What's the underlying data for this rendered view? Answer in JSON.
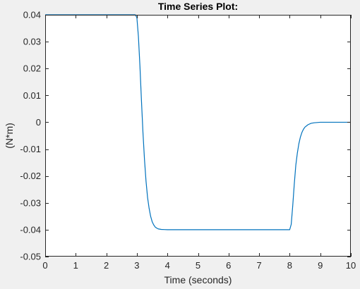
{
  "chart_data": {
    "type": "line",
    "title": "Time Series Plot:",
    "xlabel": "Time (seconds)",
    "ylabel": "(N*m)",
    "xlim": [
      0,
      10
    ],
    "ylim": [
      -0.05,
      0.04
    ],
    "xticks": [
      0,
      1,
      2,
      3,
      4,
      5,
      6,
      7,
      8,
      9,
      10
    ],
    "yticks": [
      0.04,
      0.03,
      0.02,
      0.01,
      0,
      -0.01,
      -0.02,
      -0.03,
      -0.04,
      -0.05
    ],
    "ytick_labels": [
      "0.04",
      "0.03",
      "0.02",
      "0.01",
      "0",
      "-0.01",
      "-0.02",
      "-0.03",
      "-0.04",
      "-0.05"
    ],
    "grid": false,
    "series": [
      {
        "color": "#0072bd",
        "x": [
          0,
          1,
          2,
          2.95,
          3.0,
          3.05,
          3.1,
          3.15,
          3.2,
          3.25,
          3.3,
          3.35,
          3.4,
          3.45,
          3.5,
          3.55,
          3.6,
          3.65,
          3.7,
          3.75,
          3.8,
          3.9,
          4.0,
          4.2,
          4.5,
          5,
          6,
          7,
          8.0,
          8.05,
          8.1,
          8.15,
          8.2,
          8.25,
          8.3,
          8.35,
          8.4,
          8.45,
          8.5,
          8.6,
          8.7,
          8.8,
          8.9,
          9.0,
          9.2,
          9.5,
          10
        ],
        "y": [
          0.04,
          0.04,
          0.04,
          0.04,
          0.039,
          0.032,
          0.021,
          0.008,
          -0.004,
          -0.014,
          -0.022,
          -0.028,
          -0.032,
          -0.035,
          -0.037,
          -0.0382,
          -0.039,
          -0.0394,
          -0.0397,
          -0.0398,
          -0.0399,
          -0.03995,
          -0.04,
          -0.04,
          -0.04,
          -0.04,
          -0.04,
          -0.04,
          -0.04,
          -0.038,
          -0.031,
          -0.023,
          -0.016,
          -0.0115,
          -0.008,
          -0.0055,
          -0.0038,
          -0.0026,
          -0.0018,
          -0.0009,
          -0.0004,
          -0.0002,
          -0.0001,
          0,
          0,
          0,
          0
        ]
      }
    ]
  }
}
